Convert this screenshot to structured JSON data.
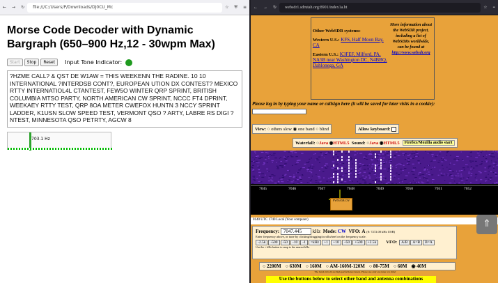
{
  "left": {
    "url": "file:///C:/Users/P/Downloads/DJ0CU_Mc",
    "title": "Morse Code Decoder with Dynamic Bargraph (650–900 Hz,12 - 30wpm Max)",
    "start": "Start",
    "stop": "Stop",
    "reset": "Reset",
    "indicator_label": "Input Tone Indicator:",
    "decoded": "?HZME CALL? & QST DE W1AW = THIS WEEKENN THE RADINE. 10 10 INTERNATIONAL ?INTERDSB CONT?, EUROPEAN UTION DX CONTEST? MEXICO RTTY INTERNATIOL4L CTANTEST, FEW5O WINTER QRP SPRINT, BRITISH COLUMBIA MTSO PARTY, NORTH AMERICAN CW SPRINT, NCCC FT4 DPRINT, WEEKAEY RTTY TEST, QRP 8OA METER CWEFOX HUNTN 3 NCCY SPRINT LADDER, K1USN SLOW SPEED TEST, VERMONT QSO ? ARTY, LABRE RS DIGI ?NTEST, MINNESOTA QSO PETRTY, AGCW 8",
    "freq": "703.1 Hz"
  },
  "right": {
    "url": "websdr1.sdrutah.org:8901/index1a.ht",
    "other": "Other WebSDR systems:",
    "western": "Western U.S.:",
    "w_links": "KFS, Half Moon Bay, CA",
    "eastern": "Eastern U.S.:",
    "e_links": "K3FEF, Milford, PA, NA5B near Washington DC, N4BBQ, Dahlonega, GA",
    "more": "More information about the WebSDR project, including a list of WebSDRs worldwide, can be found at",
    "morelink": "http://www.websdr.org",
    "login": "Please log in by typing your name or callsign here (it will be saved for later visits in a cookie):",
    "view": "View:",
    "v1": "others slow",
    "v2": "one band",
    "v3": "blind",
    "kb": "Allow keyboard:",
    "waterfall": "Waterfall:",
    "java": "Java",
    "html5": "HTML5",
    "sound": "Sound:",
    "audio_btn": "Firefox/Mozilla audio start",
    "ticks": [
      "7045",
      "7046",
      "7047",
      "7048",
      "7049",
      "7050",
      "7051",
      "7052"
    ],
    "marker": "PWNA5B CW",
    "utc": "0140 UTC  1740 Local  (Your computer)",
    "freqlabel": "Frequency:",
    "freqval": "7047.445",
    "khz": "kHz",
    "mode": "Mode:",
    "modeval": "CW",
    "vfo": "VFO:",
    "vfoval": "A",
    "range": "(8: 7272.00 kHz USB)",
    "hint": "Enter frequency above, or tune by clicking/dragging/scrollwheel on the frequency scale.",
    "fbtns": [
      "-2.5k",
      "-500",
      "-50",
      "-10",
      "-1",
      "=kHz",
      "+1",
      "+10",
      "+50",
      "+500",
      "+2.5k"
    ],
    "vfolabel": "VFO:",
    "vfobtns": [
      "A/B",
      "A=B",
      "B=A"
    ],
    "hint2": "Use the = kHz button to snap to the nearest kHz.",
    "bands": [
      "2200M",
      "630M",
      "160M",
      "AM-160M-120M",
      "80-75M",
      "60M",
      "40M"
    ],
    "note": "The bands in bold are high-performance tuners. Please use only one tuner at a time!",
    "yellow": "Use the buttons below to select other band and antenna combinations"
  }
}
